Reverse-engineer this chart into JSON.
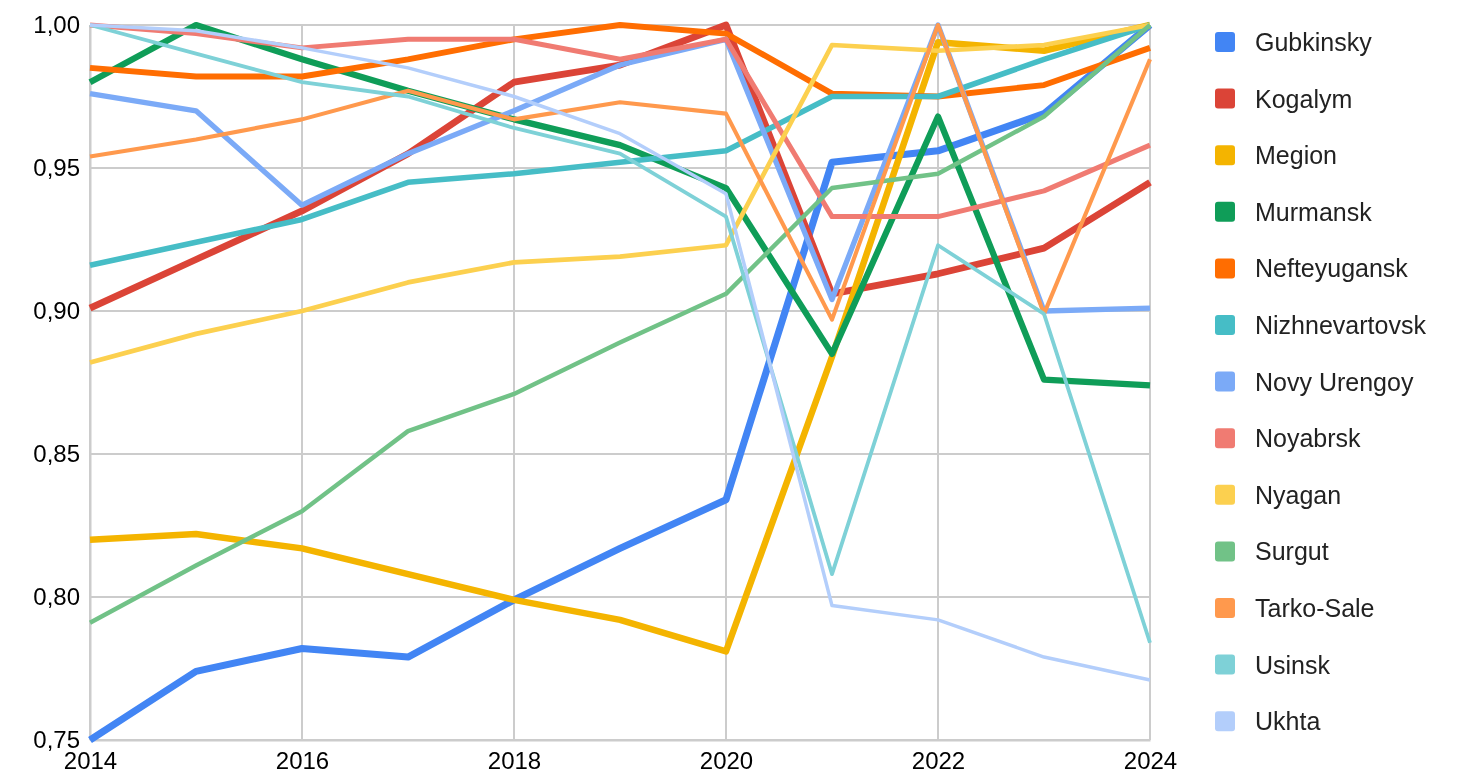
{
  "chart_data": {
    "type": "line",
    "x": [
      2014,
      2015,
      2016,
      2017,
      2018,
      2019,
      2020,
      2021,
      2022,
      2023,
      2024
    ],
    "xlim": [
      2014,
      2024
    ],
    "xticks": [
      2014,
      2016,
      2018,
      2020,
      2022,
      2024
    ],
    "ylim": [
      0.75,
      1
    ],
    "yticks": [
      {
        "value": 0.75,
        "label": "0,75"
      },
      {
        "value": 0.8,
        "label": "0,80"
      },
      {
        "value": 0.85,
        "label": "0,85"
      },
      {
        "value": 0.9,
        "label": "0,90"
      },
      {
        "value": 0.95,
        "label": "0,95"
      },
      {
        "value": 1,
        "label": "1,00"
      }
    ],
    "grid": true,
    "legend": "right",
    "line_style": "solid",
    "marker": "none",
    "series": [
      {
        "name": "Gubkinsky",
        "color": "#4285f4",
        "values": [
          0.75,
          0.774,
          0.782,
          0.779,
          0.799,
          0.817,
          0.834,
          0.952,
          0.956,
          0.969,
          1.0
        ]
      },
      {
        "name": "Kogalym",
        "color": "#db4437",
        "values": [
          0.901,
          0.918,
          0.935,
          0.955,
          0.98,
          0.986,
          1.0,
          0.906,
          0.913,
          0.922,
          0.945
        ]
      },
      {
        "name": "Megion",
        "color": "#f4b400",
        "values": [
          0.82,
          0.822,
          0.817,
          0.808,
          0.799,
          0.792,
          0.781,
          0.884,
          0.994,
          0.991,
          1.0
        ]
      },
      {
        "name": "Murmansk",
        "color": "#0f9d58",
        "values": [
          0.98,
          1.0,
          0.988,
          0.977,
          0.967,
          0.958,
          0.943,
          0.885,
          0.968,
          0.876,
          0.874
        ]
      },
      {
        "name": "Nefteyugansk",
        "color": "#ff6d01",
        "values": [
          0.985,
          0.982,
          0.982,
          0.988,
          0.995,
          1.0,
          0.997,
          0.976,
          0.975,
          0.979,
          0.992
        ]
      },
      {
        "name": "Nizhnevartovsk",
        "color": "#46bdc6",
        "values": [
          0.916,
          0.924,
          0.932,
          0.945,
          0.948,
          0.952,
          0.956,
          0.975,
          0.975,
          0.988,
          1.0
        ]
      },
      {
        "name": "Novy Urengoy",
        "color": "#7baaf7",
        "values": [
          0.976,
          0.97,
          0.937,
          0.955,
          0.97,
          0.986,
          0.995,
          0.904,
          1.0,
          0.9,
          0.901
        ]
      },
      {
        "name": "Noyabrsk",
        "color": "#f07b72",
        "values": [
          1.0,
          0.997,
          0.992,
          0.995,
          0.995,
          0.988,
          0.995,
          0.933,
          0.933,
          0.942,
          0.958
        ]
      },
      {
        "name": "Nyagan",
        "color": "#fcd04f",
        "values": [
          0.882,
          0.892,
          0.9,
          0.91,
          0.917,
          0.919,
          0.923,
          0.993,
          0.991,
          0.993,
          1.0
        ]
      },
      {
        "name": "Surgut",
        "color": "#71c287",
        "values": [
          0.791,
          0.811,
          0.83,
          0.858,
          0.871,
          0.889,
          0.906,
          0.943,
          0.948,
          0.968,
          1.0
        ]
      },
      {
        "name": "Tarko-Sale",
        "color": "#ff994d",
        "values": [
          0.954,
          0.96,
          0.967,
          0.977,
          0.967,
          0.973,
          0.969,
          0.897,
          1.0,
          0.899,
          0.988
        ]
      },
      {
        "name": "Usinsk",
        "color": "#7ed1d7",
        "values": [
          1.0,
          0.99,
          0.98,
          0.975,
          0.964,
          0.955,
          0.933,
          0.808,
          0.923,
          0.899,
          0.784
        ]
      },
      {
        "name": "Ukhta",
        "color": "#b3cefb",
        "values": [
          1.0,
          0.998,
          0.992,
          0.985,
          0.975,
          0.962,
          0.941,
          0.797,
          0.792,
          0.779,
          0.771
        ]
      }
    ]
  }
}
